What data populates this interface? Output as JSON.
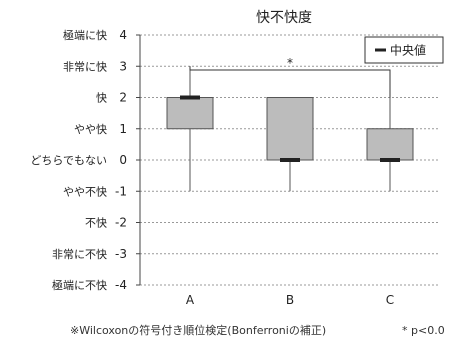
{
  "chart_data": {
    "type": "boxplot",
    "title": "快不快度",
    "categories": [
      "A",
      "B",
      "C"
    ],
    "series": [
      {
        "name": "中央値",
        "values": [
          2,
          0,
          0
        ]
      }
    ],
    "boxes": [
      {
        "category": "A",
        "min": -1,
        "q1": 1,
        "median": 2,
        "q3": 2,
        "max": 3
      },
      {
        "category": "B",
        "min": -1,
        "q1": 0,
        "median": 0,
        "q3": 2,
        "max": 2
      },
      {
        "category": "C",
        "min": -1,
        "q1": 0,
        "median": 0,
        "q3": 1,
        "max": 2
      }
    ],
    "ylim": [
      -4,
      4
    ],
    "yticks": [
      4,
      3,
      2,
      1,
      0,
      -1,
      -2,
      -3,
      -4
    ],
    "ytick_labels": [
      "4",
      "3",
      "2",
      "1",
      "0",
      "-1",
      "-2",
      "-3",
      "-4"
    ],
    "y_category_labels": [
      "極端に快",
      "非常に快",
      "快",
      "やや快",
      "どちらでもない",
      "やや不快",
      "不快",
      "非常に不快",
      "極端に不快"
    ],
    "grid": true,
    "legend": {
      "position": "top-right",
      "entries": [
        "中央値"
      ]
    },
    "significance": {
      "from": "A",
      "to": "C",
      "label": "*"
    },
    "footnote": "※Wilcoxonの符号付き順位検定(Bonferroniの補正)",
    "footnote_sig": "* p<0.0",
    "colors": {
      "box_fill": "#bcbcbc",
      "box_stroke": "#555555",
      "median": "#222222",
      "grid": "#999999",
      "axis": "#444444"
    }
  }
}
